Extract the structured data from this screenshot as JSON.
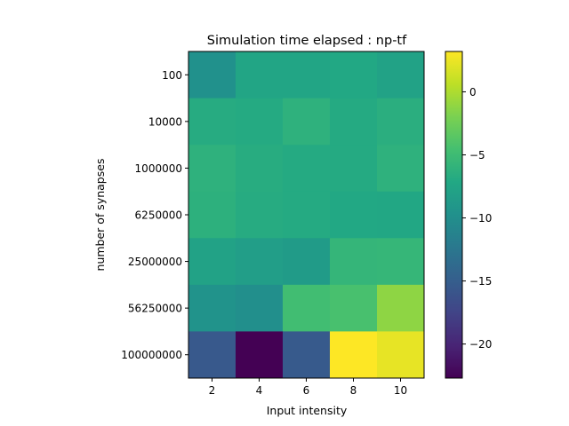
{
  "chart_data": {
    "type": "heatmap",
    "title": "Simulation time elapsed : np-tf",
    "xlabel": "Input intensity",
    "ylabel": "number of synapses",
    "x_categories": [
      "2",
      "4",
      "6",
      "8",
      "10"
    ],
    "y_categories": [
      "100",
      "10000",
      "1000000",
      "6250000",
      "25000000",
      "56250000",
      "100000000"
    ],
    "values": [
      [
        -9.7,
        -7.5,
        -7.5,
        -7.2,
        -7.8
      ],
      [
        -6.8,
        -6.9,
        -6.2,
        -6.9,
        -6.5
      ],
      [
        -6.2,
        -6.7,
        -6.9,
        -6.9,
        -6.2
      ],
      [
        -6.3,
        -6.8,
        -6.9,
        -7.2,
        -7.3
      ],
      [
        -7.8,
        -8.3,
        -8.6,
        -5.7,
        -5.6
      ],
      [
        -9.5,
        -10.0,
        -4.8,
        -4.4,
        -1.2
      ],
      [
        -15.5,
        -22.7,
        -15.4,
        3.2,
        2.3
      ]
    ],
    "colorbar": {
      "label": "",
      "range": [
        -22.7,
        3.2
      ],
      "ticks": [
        "0",
        "−5",
        "−10",
        "−15",
        "−20"
      ],
      "tick_values": [
        0,
        -5,
        -10,
        -15,
        -20
      ]
    },
    "colormap": "viridis"
  }
}
